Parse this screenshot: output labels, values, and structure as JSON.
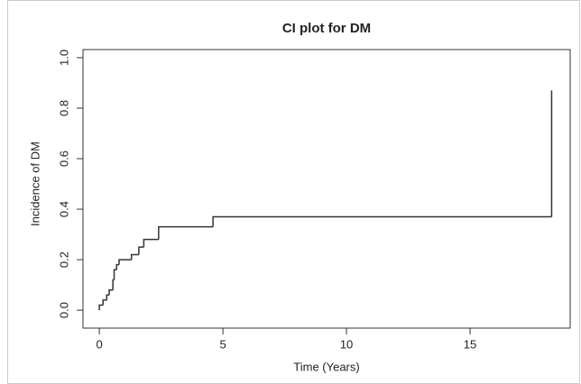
{
  "chart_data": {
    "type": "step",
    "title": "CI plot for DM",
    "x_label": "Time (Years)",
    "y_label": "Incidence of DM",
    "x": [
      0,
      0,
      0.15,
      0.3,
      0.4,
      0.55,
      0.6,
      0.7,
      0.8,
      1.3,
      1.6,
      1.8,
      2.4,
      4.6,
      18.3
    ],
    "values": [
      0,
      0.02,
      0.04,
      0.06,
      0.08,
      0.12,
      0.16,
      0.18,
      0.2,
      0.22,
      0.25,
      0.28,
      0.33,
      0.37,
      0.87
    ],
    "color": "#333333",
    "xlim": [
      -0.66,
      19.05
    ],
    "ylim": [
      -0.071,
      1.032
    ],
    "xticks": [
      0,
      5,
      10,
      15
    ],
    "yticks": [
      {
        "value": 0,
        "label": "0.0"
      },
      {
        "value": 0.2,
        "label": "0.2"
      },
      {
        "value": 0.4,
        "label": "0.4"
      },
      {
        "value": 0.6,
        "label": "0.6"
      },
      {
        "value": 0.8,
        "label": "0.8"
      },
      {
        "value": 1,
        "label": "1.0"
      }
    ]
  }
}
